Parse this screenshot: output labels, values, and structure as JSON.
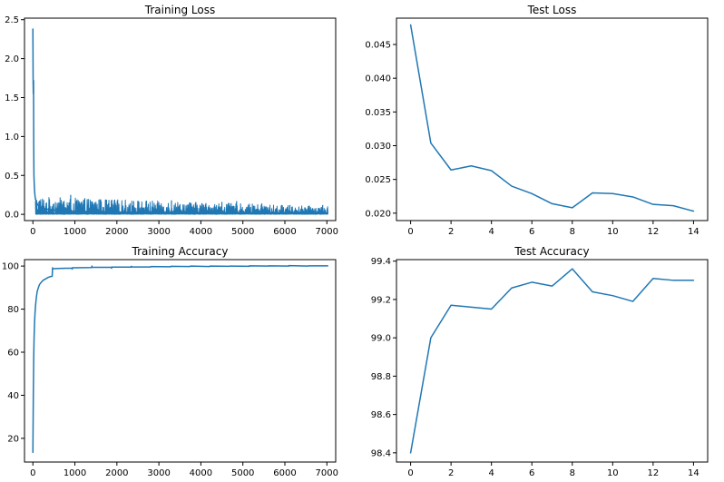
{
  "colors": {
    "series": "#1f77b4",
    "axes": "#000000",
    "background": "#ffffff"
  },
  "chart_data": [
    {
      "id": "training-loss",
      "type": "line",
      "title": "Training Loss",
      "xlabel": "",
      "ylabel": "",
      "xlim": [
        -200,
        7210
      ],
      "ylim": [
        -0.08,
        2.52
      ],
      "xticks": [
        0,
        1000,
        2000,
        3000,
        4000,
        5000,
        6000,
        7000
      ],
      "xtick_labels": [
        "0",
        "1000",
        "2000",
        "3000",
        "4000",
        "5000",
        "6000",
        "7000"
      ],
      "yticks": [
        0.0,
        0.5,
        1.0,
        1.5,
        2.0,
        2.5
      ],
      "ytick_labels": [
        "0.0",
        "0.5",
        "1.0",
        "1.5",
        "2.0",
        "2.5"
      ],
      "grid": false,
      "legend": "none",
      "series": [
        {
          "x": [
            0,
            5,
            10,
            15,
            20,
            25,
            30,
            40,
            50,
            60,
            80,
            100,
            150,
            200,
            300,
            400,
            500,
            600,
            800,
            1000,
            1500,
            2000,
            3000,
            4000,
            5000,
            6000,
            7000
          ],
          "y": [
            2.38,
            1.75,
            1.55,
            1.72,
            0.85,
            0.5,
            0.42,
            0.3,
            0.24,
            0.2,
            0.16,
            0.13,
            0.1,
            0.09,
            0.07,
            0.06,
            0.055,
            0.05,
            0.045,
            0.04,
            0.035,
            0.03,
            0.025,
            0.022,
            0.02,
            0.018,
            0.015
          ],
          "noise": {
            "x_start": 60,
            "x_end": 7030,
            "max_start": 0.26,
            "max_end": 0.11,
            "spikes": [
              {
                "x": 900,
                "y": 0.25
              },
              {
                "x": 1600,
                "y": 0.19
              },
              {
                "x": 2400,
                "y": 0.17
              },
              {
                "x": 3300,
                "y": 0.18
              },
              {
                "x": 4500,
                "y": 0.16
              },
              {
                "x": 4850,
                "y": 0.17
              },
              {
                "x": 5450,
                "y": 0.14
              },
              {
                "x": 6120,
                "y": 0.12
              },
              {
                "x": 6900,
                "y": 0.12
              }
            ]
          }
        }
      ]
    },
    {
      "id": "test-loss",
      "type": "line",
      "title": "Test Loss",
      "xlabel": "",
      "ylabel": "",
      "xlim": [
        -0.7,
        14.7
      ],
      "ylim": [
        0.0189,
        0.0489
      ],
      "xticks": [
        0,
        2,
        4,
        6,
        8,
        10,
        12,
        14
      ],
      "xtick_labels": [
        "0",
        "2",
        "4",
        "6",
        "8",
        "10",
        "12",
        "14"
      ],
      "yticks": [
        0.02,
        0.025,
        0.03,
        0.035,
        0.04,
        0.045
      ],
      "ytick_labels": [
        "0.020",
        "0.025",
        "0.030",
        "0.035",
        "0.040",
        "0.045"
      ],
      "grid": false,
      "legend": "none",
      "series": [
        {
          "x": [
            0,
            1,
            2,
            3,
            4,
            5,
            6,
            7,
            8,
            9,
            10,
            11,
            12,
            13,
            14
          ],
          "y": [
            0.0479,
            0.0304,
            0.0264,
            0.027,
            0.0263,
            0.024,
            0.0229,
            0.0214,
            0.0208,
            0.023,
            0.0229,
            0.0224,
            0.0213,
            0.0211,
            0.0203
          ]
        }
      ]
    },
    {
      "id": "training-accuracy",
      "type": "line",
      "title": "Training Accuracy",
      "xlabel": "",
      "ylabel": "",
      "xlim": [
        -200,
        7210
      ],
      "ylim": [
        9.0,
        103.0
      ],
      "xticks": [
        0,
        1000,
        2000,
        3000,
        4000,
        5000,
        6000,
        7000
      ],
      "xtick_labels": [
        "0",
        "1000",
        "2000",
        "3000",
        "4000",
        "5000",
        "6000",
        "7000"
      ],
      "yticks": [
        20,
        40,
        60,
        80,
        100
      ],
      "ytick_labels": [
        "20",
        "40",
        "60",
        "80",
        "100"
      ],
      "grid": false,
      "legend": "none",
      "series": [
        {
          "x": [
            0,
            10,
            20,
            30,
            40,
            50,
            60,
            80,
            100,
            130,
            160,
            200,
            250,
            300,
            350,
            400,
            460,
            468,
            470,
            480,
            500,
            600,
            800,
            935,
            936,
            940,
            1000,
            1400,
            1405,
            1410,
            1870,
            1875,
            1880,
            2340,
            2345,
            2350,
            2800,
            2810,
            3280,
            3285,
            3740,
            3750,
            4210,
            4215,
            4680,
            4690,
            5150,
            5155,
            5610,
            5615,
            6090,
            6095,
            6550,
            6560,
            7020
          ],
          "y": [
            13.5,
            40,
            58,
            68,
            74,
            78,
            81,
            85,
            88,
            90,
            91.5,
            92.5,
            93.5,
            94,
            94.6,
            95,
            95.3,
            99.2,
            98.6,
            98.7,
            98.8,
            98.9,
            99.0,
            99.0,
            98.6,
            99.2,
            99.2,
            99.3,
            100.0,
            99.4,
            99.4,
            99.0,
            99.5,
            99.5,
            99.9,
            99.6,
            99.6,
            99.8,
            99.7,
            99.9,
            99.8,
            100.0,
            99.8,
            100.0,
            99.9,
            100.0,
            99.9,
            100.1,
            100.0,
            100.1,
            100.0,
            100.2,
            100.0,
            100.1,
            100.1
          ]
        }
      ]
    },
    {
      "id": "test-accuracy",
      "type": "line",
      "title": "Test Accuracy",
      "xlabel": "",
      "ylabel": "",
      "xlim": [
        -0.7,
        14.7
      ],
      "ylim": [
        98.352,
        99.408
      ],
      "xticks": [
        0,
        2,
        4,
        6,
        8,
        10,
        12,
        14
      ],
      "xtick_labels": [
        "0",
        "2",
        "4",
        "6",
        "8",
        "10",
        "12",
        "14"
      ],
      "yticks": [
        98.4,
        98.6,
        98.8,
        99.0,
        99.2,
        99.4
      ],
      "ytick_labels": [
        "98.4",
        "98.6",
        "98.8",
        "99.0",
        "99.2",
        "99.4"
      ],
      "grid": false,
      "legend": "none",
      "series": [
        {
          "x": [
            0,
            1,
            2,
            3,
            4,
            5,
            6,
            7,
            8,
            9,
            10,
            11,
            12,
            13,
            14
          ],
          "y": [
            98.4,
            99.0,
            99.17,
            99.16,
            99.15,
            99.26,
            99.29,
            99.27,
            99.36,
            99.24,
            99.22,
            99.19,
            99.31,
            99.3,
            99.3
          ]
        }
      ]
    }
  ]
}
